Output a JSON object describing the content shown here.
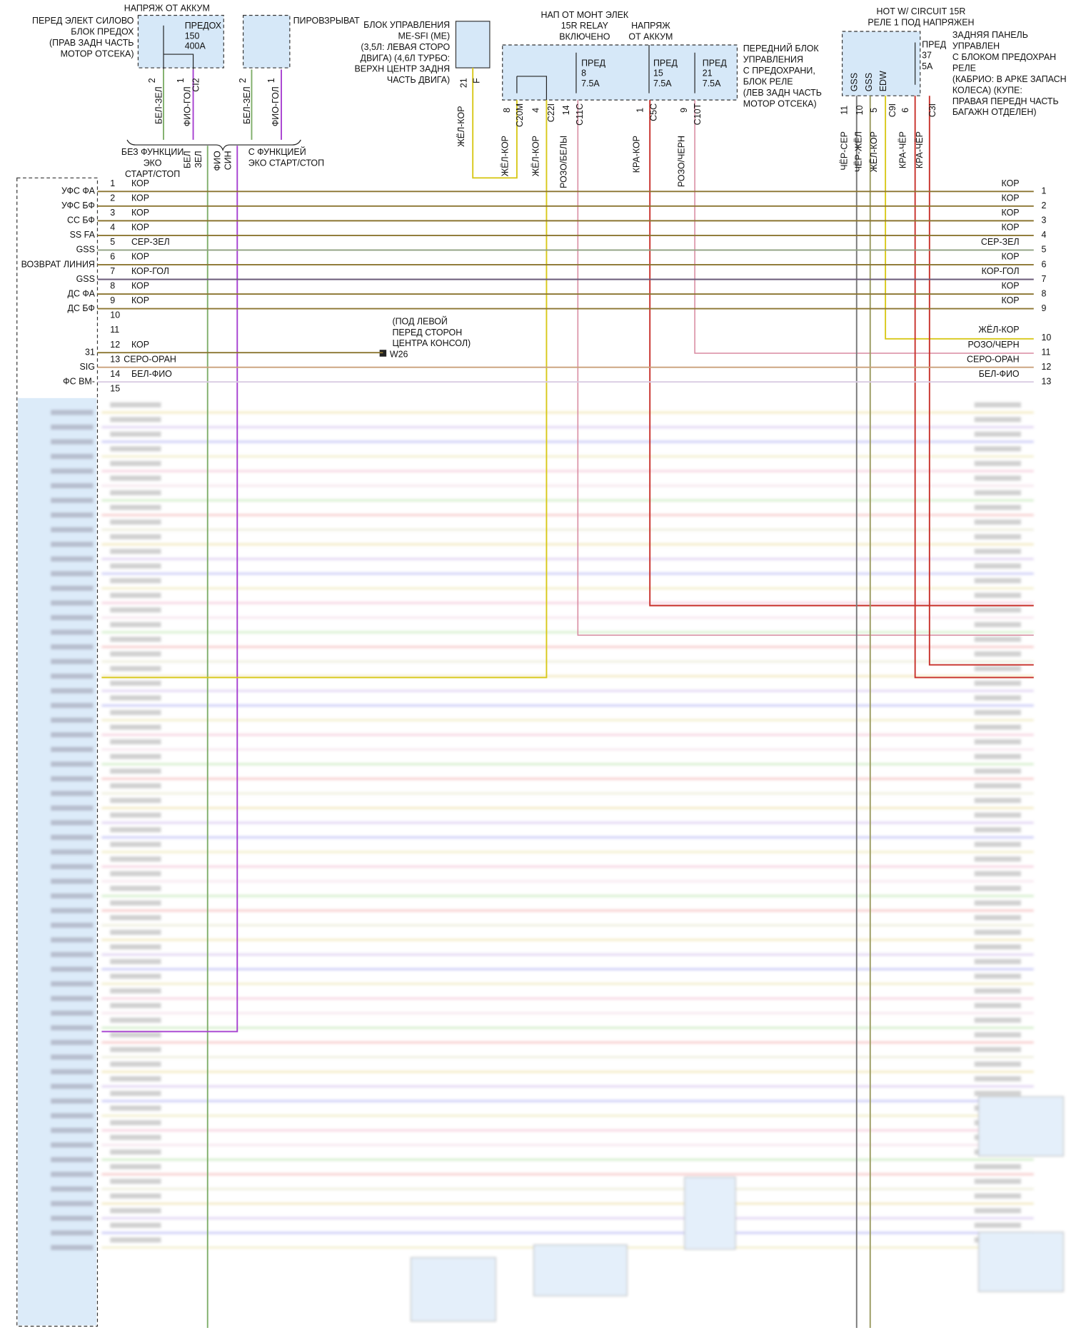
{
  "fuse_block": {
    "title": "НАПРЯЖ ОТ АККУМ",
    "lines": [
      "ПЕРЕД ЭЛЕКТ СИЛОВО",
      "БЛОК ПРЕДОХ",
      "(ПРАВ ЗАДН ЧАСТЬ",
      "МОТОР ОТСЕКА)"
    ],
    "fuse": [
      "ПРЕДОХ",
      "150",
      "400A"
    ],
    "pins": [
      "2",
      "1"
    ],
    "connector": "CI2",
    "wires": [
      "БЕЛ-ЗЕЛ",
      "ФИО-ГОЛ"
    ]
  },
  "pyro": {
    "title": "ПИРОВЗРЫВАТ",
    "pins": [
      "2",
      "1"
    ],
    "wires": [
      "БЕЛ-ЗЕЛ",
      "ФИО-ГОЛ"
    ]
  },
  "variants": {
    "without": [
      "БЕЗ ФУНКЦИИ",
      "ЭКО",
      "СТАРТ/СТОП"
    ],
    "without_wires": [
      "БЕЛ",
      "ЗЕЛ"
    ],
    "with": [
      "С ФУНКЦИЕЙ",
      "ЭКО СТАРТ/СТОП"
    ],
    "with_wires": [
      "ФИО",
      "СИН"
    ]
  },
  "ecu": {
    "lines": [
      "БЛОК УПРАВЛЕНИЯ",
      "ME-SFI (ME)",
      "(3,5Л: ЛЕВАЯ СТОРО",
      "ДВИГА) (4,6Л ТУРБО:",
      "ВЕРХН ЦЕНТР ЗАДНЯ",
      "ЧАСТЬ ДВИГА)"
    ],
    "pin": "21",
    "connector": "F",
    "wire": "ЖЁЛ-КОР"
  },
  "front_box": {
    "supply1": [
      "НАП ОТ МОНТ ЭЛЕК",
      "15R RELAY",
      "ВКЛЮЧЕНО"
    ],
    "supply2": [
      "НАПРЯЖ",
      "ОТ АККУМ"
    ],
    "fuses": [
      [
        "ПРЕД",
        "8",
        "7.5A"
      ],
      [
        "ПРЕД",
        "15",
        "7.5A"
      ],
      [
        "ПРЕД",
        "21",
        "7.5A"
      ]
    ],
    "lines": [
      "ПЕРЕДНИЙ БЛОК",
      "УПРАВЛЕНИЯ",
      "С ПРЕДОХРАНИ,",
      "БЛОК РЕЛЕ",
      "(ЛЕВ ЗАДН ЧАСТЬ",
      "МОТОР ОТСЕКА)"
    ],
    "pins": [
      {
        "pin": "8",
        "connector": "C20M",
        "wire": "ЖЁЛ-КОР"
      },
      {
        "pin": "4",
        "connector": "C22I",
        "wire": "ЖЁЛ-КОР"
      },
      {
        "pin": "14",
        "connector": "C11C",
        "wire": "РОЗО/БЕЛЫ"
      },
      {
        "pin": "1",
        "connector": "C5C",
        "wire": "КРА-КОР"
      },
      {
        "pin": "9",
        "connector": "C10T",
        "wire": "РОЗО/ЧЕРН"
      }
    ]
  },
  "rear_box": {
    "supply": [
      "HOT W/ CIRCUIT 15R",
      "РЕЛЕ 1 ПОД НАПРЯЖЕН"
    ],
    "fuse": [
      "ПРЕД",
      "37",
      "5A"
    ],
    "lines": [
      "ЗАДНЯЯ ПАНЕЛЬ",
      "УПРАВЛЕН",
      "С БЛОКОМ ПРЕДОХРАН",
      "РЕЛЕ",
      "(КАБРИО: В АРКЕ ЗАПАСН",
      "КОЛЕСА) (КУПЕ:",
      "ПРАВАЯ ПЕРЕДН ЧАСТЬ",
      "БАГАЖН ОТДЕЛЕН)"
    ],
    "signals": [
      "GSS",
      "GSS",
      "EDW"
    ],
    "pins": [
      "11",
      "10",
      "5",
      "6"
    ],
    "connectors": [
      "C9I",
      "C3I"
    ],
    "wires": [
      "ЧЁР-СЕР",
      "ЧЁР-ЖЁЛ",
      "ЖЁЛ-КОР",
      "КРА-ЧЁР",
      "КРА-ЧЁР"
    ]
  },
  "splice": {
    "location": [
      "(ПОД ЛЕВОЙ",
      "ПЕРЕД СТОРОН",
      "ЦЕНТРА КОНСОЛ)"
    ],
    "id": "W26"
  },
  "left_rows": [
    {
      "num": "1",
      "signal": "УФС ФА",
      "wire": "КОР"
    },
    {
      "num": "2",
      "signal": "УФС БФ",
      "wire": "КОР"
    },
    {
      "num": "3",
      "signal": "СС БФ",
      "wire": "КОР"
    },
    {
      "num": "4",
      "signal": "SS FA",
      "wire": "КОР"
    },
    {
      "num": "5",
      "signal": "GSS",
      "wire": "СЕР-ЗЕЛ"
    },
    {
      "num": "6",
      "signal": "ВОЗВРАТ ЛИНИЯ",
      "wire": "КОР"
    },
    {
      "num": "7",
      "signal": "GSS",
      "wire": "КОР-ГОЛ"
    },
    {
      "num": "8",
      "signal": "ДС ФА",
      "wire": "КОР"
    },
    {
      "num": "9",
      "signal": "ДС БФ",
      "wire": "КОР"
    },
    {
      "num": "10"
    },
    {
      "num": "11"
    },
    {
      "num": "12",
      "signal": "31",
      "wire": "КОР"
    },
    {
      "num": "13",
      "signal": "SIG",
      "wire": "СЕРО-ОРАН"
    },
    {
      "num": "14",
      "signal": "ФС ВМ-",
      "wire": "БЕЛ-ФИО"
    },
    {
      "num": "15"
    }
  ],
  "right_rows": [
    {
      "wire": "КОР",
      "num": "1"
    },
    {
      "wire": "КОР",
      "num": "2"
    },
    {
      "wire": "КОР",
      "num": "3"
    },
    {
      "wire": "КОР",
      "num": "4"
    },
    {
      "wire": "СЕР-ЗЕЛ",
      "num": "5"
    },
    {
      "wire": "КОР",
      "num": "6"
    },
    {
      "wire": "КОР-ГОЛ",
      "num": "7"
    },
    {
      "wire": "КОР",
      "num": "8"
    },
    {
      "wire": "КОР",
      "num": "9"
    },
    {
      "wire": "ЖЁЛ-КОР",
      "num": "10"
    },
    {
      "wire": "РОЗО/ЧЕРН",
      "num": "11"
    },
    {
      "wire": "СЕРО-ОРАН",
      "num": "12"
    },
    {
      "wire": "БЕЛ-ФИО",
      "num": "13"
    }
  ]
}
